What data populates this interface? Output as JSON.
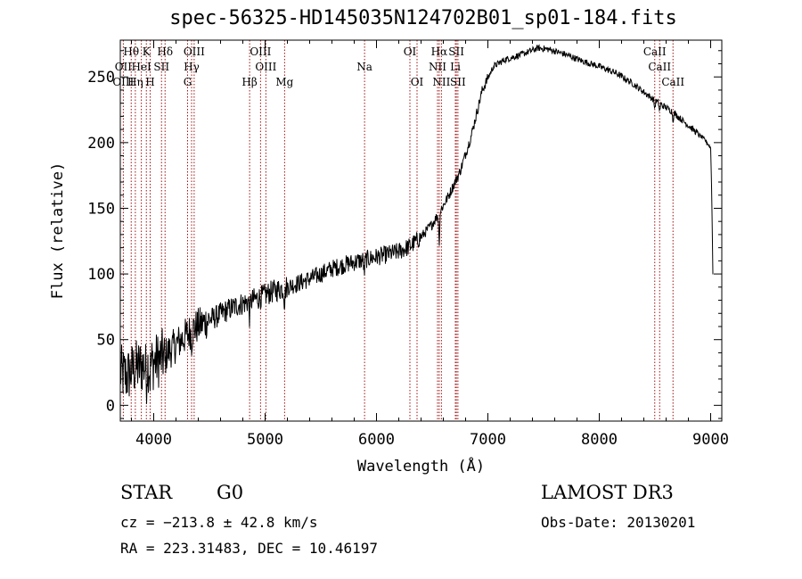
{
  "chart_data": {
    "type": "line",
    "title": "spec-56325-HD145035N124702B01_sp01-184.fits",
    "xlabel": "Wavelength (Å)",
    "ylabel": "Flux (relative)",
    "xlim": [
      3700,
      9100
    ],
    "ylim": [
      -12,
      278
    ],
    "xticks": [
      4000,
      5000,
      6000,
      7000,
      8000,
      9000
    ],
    "yticks": [
      0,
      50,
      100,
      150,
      200,
      250
    ],
    "series": [
      {
        "name": "flux",
        "anchors": [
          [
            3700,
            25
          ],
          [
            3760,
            22
          ],
          [
            3820,
            28
          ],
          [
            3900,
            30
          ],
          [
            3980,
            32
          ],
          [
            4050,
            35
          ],
          [
            4150,
            42
          ],
          [
            4250,
            50
          ],
          [
            4350,
            58
          ],
          [
            4450,
            63
          ],
          [
            4550,
            67
          ],
          [
            4650,
            72
          ],
          [
            4750,
            76
          ],
          [
            4850,
            79
          ],
          [
            4950,
            82
          ],
          [
            5050,
            86
          ],
          [
            5150,
            89
          ],
          [
            5300,
            93
          ],
          [
            5450,
            98
          ],
          [
            5600,
            104
          ],
          [
            5750,
            108
          ],
          [
            5900,
            111
          ],
          [
            6050,
            114
          ],
          [
            6200,
            117
          ],
          [
            6300,
            121
          ],
          [
            6400,
            128
          ],
          [
            6500,
            138
          ],
          [
            6560,
            146
          ],
          [
            6650,
            160
          ],
          [
            6750,
            178
          ],
          [
            6850,
            205
          ],
          [
            6950,
            240
          ],
          [
            7050,
            258
          ],
          [
            7150,
            263
          ],
          [
            7300,
            267
          ],
          [
            7450,
            272
          ],
          [
            7550,
            271
          ],
          [
            7700,
            267
          ],
          [
            7850,
            262
          ],
          [
            8000,
            258
          ],
          [
            8150,
            253
          ],
          [
            8300,
            245
          ],
          [
            8500,
            232
          ],
          [
            8650,
            224
          ],
          [
            8800,
            213
          ],
          [
            8950,
            202
          ],
          [
            9000,
            196
          ],
          [
            9010,
            160
          ],
          [
            9020,
            100
          ]
        ],
        "features": [
          [
            3934,
            -10
          ],
          [
            3968,
            -8
          ],
          [
            4102,
            -8
          ],
          [
            4340,
            -8
          ],
          [
            4861,
            -12
          ],
          [
            5175,
            -12
          ],
          [
            5890,
            -10
          ],
          [
            6563,
            -22
          ],
          [
            8498,
            -6
          ],
          [
            8542,
            -6
          ],
          [
            8662,
            -6
          ]
        ]
      }
    ],
    "lines": [
      {
        "name": "Hθ",
        "wavelength": 3798,
        "row": 0
      },
      {
        "name": "K",
        "wavelength": 3934,
        "row": 0
      },
      {
        "name": "Hδ",
        "wavelength": 4102,
        "row": 0
      },
      {
        "name": "OIII",
        "wavelength": 4363,
        "row": 0
      },
      {
        "name": "OIII",
        "wavelength": 4959,
        "row": 0
      },
      {
        "name": "OI",
        "wavelength": 6300,
        "row": 0
      },
      {
        "name": "Hα",
        "wavelength": 6563,
        "row": 0
      },
      {
        "name": "SII",
        "wavelength": 6717,
        "row": 0
      },
      {
        "name": "CaII",
        "wavelength": 8498,
        "row": 0
      },
      {
        "name": "OII",
        "wavelength": 3727,
        "row": 1
      },
      {
        "name": "HeI",
        "wavelength": 3889,
        "row": 1
      },
      {
        "name": "SII",
        "wavelength": 4070,
        "row": 1
      },
      {
        "name": "Hγ",
        "wavelength": 4340,
        "row": 1
      },
      {
        "name": "OIII",
        "wavelength": 5007,
        "row": 1
      },
      {
        "name": "Na",
        "wavelength": 5893,
        "row": 1
      },
      {
        "name": "NII",
        "wavelength": 6548,
        "row": 1
      },
      {
        "name": "Li",
        "wavelength": 6708,
        "row": 1
      },
      {
        "name": "CaII",
        "wavelength": 8542,
        "row": 1
      },
      {
        "name": "OIII",
        "wavelength": 3727,
        "row": 2
      },
      {
        "name": "Hη",
        "wavelength": 3835,
        "row": 2
      },
      {
        "name": "H",
        "wavelength": 3968,
        "row": 2
      },
      {
        "name": "G",
        "wavelength": 4304,
        "row": 2
      },
      {
        "name": "Hβ",
        "wavelength": 4861,
        "row": 2
      },
      {
        "name": "Mg",
        "wavelength": 5175,
        "row": 2
      },
      {
        "name": "OI",
        "wavelength": 6364,
        "row": 2
      },
      {
        "name": "NII",
        "wavelength": 6583,
        "row": 2
      },
      {
        "name": "SII",
        "wavelength": 6731,
        "row": 2
      },
      {
        "name": "CaII",
        "wavelength": 8662,
        "row": 2
      }
    ],
    "grid": false,
    "legend": "none"
  },
  "info": {
    "class": "STAR",
    "subclass": "G0",
    "survey": "LAMOST DR3",
    "cz": "cz = −213.8 ± 42.8 km/s",
    "obs_date": "Obs-Date: 20130201",
    "coords": "RA = 223.31483, DEC =  10.46197"
  },
  "colors": {
    "line_marker": "#a01010",
    "spectrum": "#000000"
  }
}
